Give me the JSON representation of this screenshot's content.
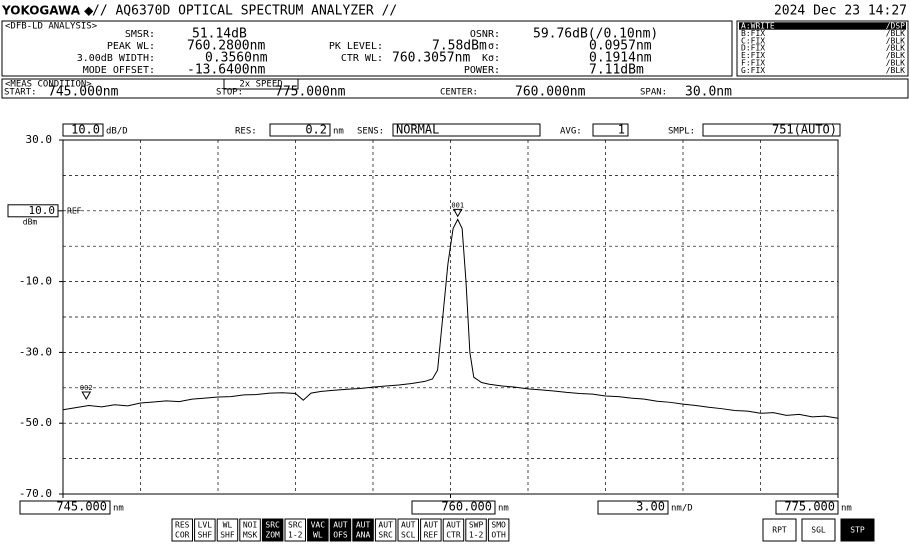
{
  "header": {
    "brand": "YOKOGAWA ◆",
    "title": "// AQ6370D OPTICAL SPECTRUM ANALYZER //",
    "datetime": "2024 Dec 23 14:27"
  },
  "analysis": {
    "title": "<DFB-LD ANALYSIS>",
    "items": [
      {
        "label": "SMSR:",
        "value": "51.14dB"
      },
      {
        "label": "PEAK WL:",
        "value": "760.2800nm"
      },
      {
        "label": "3.00dB WIDTH:",
        "value": "0.3560nm"
      },
      {
        "label": "MODE OFFSET:",
        "value": "-13.6400nm"
      },
      {
        "label": "PK LEVEL:",
        "value": "7.58dBm"
      },
      {
        "label": "CTR WL:",
        "value": "760.3057nm"
      },
      {
        "label": "OSNR:",
        "value": "59.76dB(/0.10nm)"
      },
      {
        "label": "σ:",
        "value": "0.0957nm"
      },
      {
        "label": "Kσ:",
        "value": "0.1914nm"
      },
      {
        "label": "POWER:",
        "value": "7.11dBm"
      }
    ]
  },
  "traces": [
    {
      "name": "A:WRITE",
      "mode": "/DSP",
      "active": true
    },
    {
      "name": "B:FIX",
      "mode": "/BLK",
      "active": false
    },
    {
      "name": "C:FIX",
      "mode": "/BLK",
      "active": false
    },
    {
      "name": "D:FIX",
      "mode": "/BLK",
      "active": false
    },
    {
      "name": "E:FIX",
      "mode": "/BLK",
      "active": false
    },
    {
      "name": "F:FIX",
      "mode": "/BLK",
      "active": false
    },
    {
      "name": "G:FIX",
      "mode": "/BLK",
      "active": false
    }
  ],
  "meas_condition": {
    "title": "<MEAS CONDITION>",
    "speed": "2x SPEED",
    "items": [
      {
        "label": "START:",
        "value": "745.000nm"
      },
      {
        "label": "STOP:",
        "value": "775.000nm"
      },
      {
        "label": "CENTER:",
        "value": "760.000nm"
      },
      {
        "label": "SPAN:",
        "value": "30.0nm"
      }
    ]
  },
  "settings": [
    {
      "label": "RES:",
      "value": "0.2",
      "unit": "nm"
    },
    {
      "label": "SENS:",
      "value": "NORMAL"
    },
    {
      "label": "AVG:",
      "value": "1"
    },
    {
      "label": "SMPL:",
      "value": "751(AUTO)"
    }
  ],
  "chart_data": {
    "type": "line",
    "color": "#000000",
    "xlim": [
      745,
      775
    ],
    "ylim": [
      -70,
      30
    ],
    "y_division": {
      "value": 10,
      "label": "10.0"
    },
    "y_division_unit": "dB/D",
    "x_division": {
      "value": 3,
      "label": "3.00"
    },
    "x_division_unit": "nm/D",
    "ref_level": {
      "value": 10,
      "label": "10.0"
    },
    "ref_label": "REF",
    "y_unit": "dBm",
    "x_unit": "nm",
    "yticks": [
      {
        "value": 30,
        "label": "30.0"
      },
      {
        "value": -10,
        "label": "-10.0"
      },
      {
        "value": -30,
        "label": "-30.0"
      },
      {
        "value": -50,
        "label": "-50.0"
      },
      {
        "value": -70,
        "label": "-70.0"
      }
    ],
    "xticks": [
      {
        "value": 745,
        "label": "745.000"
      },
      {
        "value": 760,
        "label": "760.000"
      },
      {
        "value": 775,
        "label": "775.000"
      }
    ],
    "grid": true,
    "x": [
      745.0,
      745.5,
      746.0,
      746.5,
      747.0,
      747.5,
      748.0,
      748.5,
      749.0,
      749.5,
      750.0,
      750.5,
      751.0,
      751.5,
      752.0,
      752.5,
      753.0,
      753.5,
      754.0,
      754.3,
      754.6,
      755.0,
      755.5,
      756.0,
      756.5,
      757.0,
      757.5,
      758.0,
      758.5,
      759.0,
      759.3,
      759.5,
      759.7,
      759.9,
      760.1,
      760.28,
      760.45,
      760.6,
      760.75,
      760.9,
      761.2,
      761.5,
      762.0,
      762.5,
      763.0,
      763.5,
      764.0,
      764.5,
      765.0,
      765.5,
      766.0,
      766.5,
      767.0,
      767.5,
      768.0,
      768.5,
      769.0,
      769.5,
      770.0,
      770.5,
      771.0,
      771.5,
      772.0,
      772.5,
      773.0,
      773.5,
      774.0,
      774.5,
      775.0
    ],
    "values": [
      -46.2,
      -45.6,
      -45.0,
      -45.4,
      -44.8,
      -45.1,
      -44.3,
      -44.0,
      -43.7,
      -43.9,
      -43.2,
      -42.9,
      -42.6,
      -42.5,
      -42.0,
      -41.9,
      -41.5,
      -41.4,
      -41.6,
      -43.5,
      -41.5,
      -41.0,
      -40.7,
      -40.4,
      -40.2,
      -39.8,
      -39.5,
      -39.2,
      -38.8,
      -38.2,
      -37.5,
      -35.0,
      -20.0,
      -5.0,
      5.0,
      7.58,
      5.0,
      -10.0,
      -30.0,
      -37.0,
      -38.5,
      -39.0,
      -39.5,
      -39.8,
      -40.3,
      -40.6,
      -40.9,
      -41.3,
      -41.6,
      -41.8,
      -42.3,
      -42.5,
      -42.9,
      -43.2,
      -43.8,
      -44.1,
      -44.6,
      -45.0,
      -45.5,
      -45.9,
      -46.4,
      -46.6,
      -47.2,
      -47.0,
      -47.8,
      -47.5,
      -48.2,
      -48.0,
      -48.6
    ],
    "markers": [
      {
        "label": "001",
        "x": 760.28,
        "value": 7.58
      },
      {
        "label": "002",
        "x": 745.9,
        "value": -44.0
      }
    ]
  },
  "buttons": [
    {
      "lines": [
        "RES",
        "COR"
      ],
      "active": false
    },
    {
      "lines": [
        "LVL",
        "SHF"
      ],
      "active": false
    },
    {
      "lines": [
        "WL",
        "SHF"
      ],
      "active": false
    },
    {
      "lines": [
        "NOI",
        "MSK"
      ],
      "active": false
    },
    {
      "lines": [
        "SRC",
        "ZOM"
      ],
      "active": true
    },
    {
      "lines": [
        "SRC",
        "1-2"
      ],
      "active": false
    },
    {
      "lines": [
        "VAC",
        "WL"
      ],
      "active": true
    },
    {
      "lines": [
        "AUT",
        "OFS"
      ],
      "active": true
    },
    {
      "lines": [
        "AUT",
        "ANA"
      ],
      "active": true
    },
    {
      "lines": [
        "AUT",
        "SRC"
      ],
      "active": false
    },
    {
      "lines": [
        "AUT",
        "SCL"
      ],
      "active": false
    },
    {
      "lines": [
        "AUT",
        "REF"
      ],
      "active": false
    },
    {
      "lines": [
        "AUT",
        "CTR"
      ],
      "active": false
    },
    {
      "lines": [
        "SWP",
        "1-2"
      ],
      "active": false
    },
    {
      "lines": [
        "SMO",
        "OTH"
      ],
      "active": false
    },
    {
      "lines": [
        "RPT"
      ],
      "active": false
    },
    {
      "lines": [
        "SGL"
      ],
      "active": false
    },
    {
      "lines": [
        "STP"
      ],
      "active": true
    }
  ]
}
